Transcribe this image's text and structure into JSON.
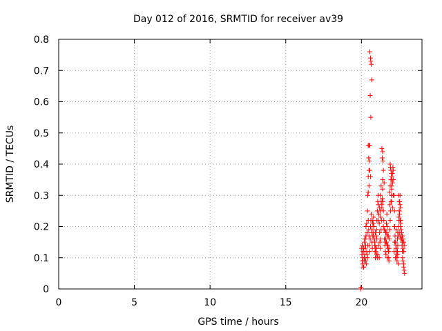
{
  "chart_data": {
    "type": "scatter",
    "title": "Day 012 of 2016, SRMTID for receiver av39",
    "xlabel": "GPS time / hours",
    "ylabel": "SRMTID / TECUs",
    "xlim": [
      0,
      24
    ],
    "ylim": [
      0,
      0.8
    ],
    "xticks": [
      "0",
      "5",
      "10",
      "15",
      "20"
    ],
    "xtick_values": [
      0,
      5,
      10,
      15,
      20
    ],
    "yticks": [
      "0",
      "0.1",
      "0.2",
      "0.3",
      "0.4",
      "0.5",
      "0.6",
      "0.7",
      "0.8"
    ],
    "ytick_values": [
      0,
      0.1,
      0.2,
      0.3,
      0.4,
      0.5,
      0.6,
      0.7,
      0.8
    ],
    "grid": true,
    "marker": "plus",
    "color": "#ff0000",
    "series": [
      {
        "name": "SRMTID",
        "x": [
          19.95,
          19.97,
          20.0,
          20.03,
          20.05,
          20.08,
          20.1,
          20.12,
          20.15,
          20.18,
          20.2,
          20.22,
          20.25,
          20.28,
          20.05,
          20.12,
          20.2,
          20.3,
          20.35,
          20.38,
          20.4,
          20.42,
          20.45,
          20.48,
          20.5,
          20.52,
          20.55,
          20.58,
          20.6,
          20.62,
          20.65,
          20.68,
          20.7,
          20.72,
          20.75,
          20.78,
          20.8,
          20.82,
          20.85,
          20.88,
          20.9,
          20.92,
          20.95,
          20.98,
          21.0,
          21.02,
          21.05,
          21.08,
          21.1,
          21.12,
          21.15,
          21.18,
          21.2,
          21.22,
          21.25,
          21.28,
          21.3,
          21.32,
          21.35,
          21.38,
          21.4,
          21.42,
          21.45,
          21.48,
          21.5,
          21.52,
          21.55,
          21.58,
          21.6,
          21.62,
          21.65,
          21.68,
          21.7,
          21.72,
          21.75,
          21.78,
          21.8,
          21.82,
          21.85,
          21.88,
          21.9,
          21.92,
          21.95,
          21.98,
          22.0,
          22.02,
          22.05,
          22.08,
          22.1,
          22.12,
          22.15,
          22.18,
          22.2,
          22.22,
          22.25,
          22.28,
          22.3,
          22.32,
          22.35,
          22.38,
          22.4,
          22.42,
          22.45,
          22.48,
          22.5,
          22.52,
          22.55,
          22.58,
          22.6,
          22.62,
          22.65,
          22.68,
          22.7,
          22.72,
          22.75,
          22.78,
          22.8,
          22.82,
          22.85,
          20.55,
          20.6,
          20.62,
          20.65,
          20.68,
          20.58,
          20.62,
          20.45,
          20.5,
          20.55,
          20.48,
          20.52,
          20.5,
          20.55,
          20.45,
          20.6,
          20.5,
          20.45,
          21.35,
          21.4,
          21.38,
          21.42,
          21.45,
          21.4,
          21.5,
          21.3,
          21.25,
          21.3,
          21.35,
          21.2,
          21.25,
          21.28,
          21.15,
          21.1,
          21.45,
          21.55,
          21.6,
          21.9,
          21.92,
          21.95,
          21.98,
          22.0,
          21.95,
          22.05,
          21.9,
          22.0,
          21.85,
          22.1,
          22.0,
          21.88,
          22.05,
          22.45,
          22.5,
          22.55,
          22.5,
          22.52,
          22.48,
          22.55,
          22.6,
          22.58,
          22.62,
          22.65,
          22.7,
          22.75,
          22.8,
          22.85,
          22.4,
          22.55,
          22.6,
          22.7,
          22.75,
          22.8,
          20.7,
          20.75,
          20.8,
          20.85,
          20.9,
          20.95,
          21.0,
          21.05,
          20.72,
          20.82,
          20.92,
          21.02,
          21.12,
          20.78,
          20.88,
          20.98,
          21.08,
          21.18,
          20.3,
          20.25,
          20.2,
          20.35,
          20.4,
          20.15,
          20.1,
          20.28,
          20.38,
          20.42,
          20.22,
          20.32,
          20.12,
          21.6,
          21.65,
          21.7,
          21.75,
          21.8,
          21.62,
          21.72,
          21.82,
          21.68,
          21.78,
          22.2,
          22.3,
          22.4,
          22.25,
          22.35,
          22.45,
          22.15,
          22.28,
          22.38,
          22.5,
          22.3,
          22.18
        ],
        "y": [
          0.0,
          0.005,
          0.13,
          0.11,
          0.09,
          0.08,
          0.1,
          0.12,
          0.07,
          0.09,
          0.1,
          0.11,
          0.13,
          0.14,
          0.14,
          0.12,
          0.1,
          0.2,
          0.21,
          0.18,
          0.25,
          0.3,
          0.22,
          0.19,
          0.17,
          0.14,
          0.12,
          0.16,
          0.2,
          0.22,
          0.24,
          0.18,
          0.15,
          0.13,
          0.17,
          0.21,
          0.23,
          0.2,
          0.16,
          0.14,
          0.12,
          0.1,
          0.13,
          0.17,
          0.19,
          0.22,
          0.25,
          0.28,
          0.3,
          0.27,
          0.24,
          0.21,
          0.18,
          0.15,
          0.13,
          0.16,
          0.19,
          0.22,
          0.26,
          0.29,
          0.32,
          0.28,
          0.25,
          0.22,
          0.19,
          0.16,
          0.14,
          0.12,
          0.15,
          0.18,
          0.21,
          0.24,
          0.2,
          0.17,
          0.14,
          0.12,
          0.1,
          0.13,
          0.16,
          0.19,
          0.22,
          0.25,
          0.28,
          0.3,
          0.33,
          0.35,
          0.37,
          0.39,
          0.38,
          0.35,
          0.3,
          0.25,
          0.2,
          0.17,
          0.15,
          0.13,
          0.12,
          0.11,
          0.1,
          0.12,
          0.14,
          0.17,
          0.2,
          0.22,
          0.25,
          0.28,
          0.3,
          0.26,
          0.22,
          0.19,
          0.16,
          0.14,
          0.12,
          0.1,
          0.09,
          0.08,
          0.07,
          0.06,
          0.05,
          0.76,
          0.74,
          0.73,
          0.72,
          0.67,
          0.62,
          0.55,
          0.46,
          0.46,
          0.46,
          0.42,
          0.41,
          0.38,
          0.38,
          0.36,
          0.36,
          0.33,
          0.31,
          0.45,
          0.44,
          0.42,
          0.41,
          0.38,
          0.35,
          0.34,
          0.33,
          0.3,
          0.28,
          0.27,
          0.26,
          0.25,
          0.23,
          0.24,
          0.22,
          0.2,
          0.19,
          0.18,
          0.4,
          0.39,
          0.38,
          0.37,
          0.36,
          0.35,
          0.34,
          0.33,
          0.32,
          0.31,
          0.3,
          0.28,
          0.27,
          0.26,
          0.3,
          0.28,
          0.27,
          0.25,
          0.24,
          0.23,
          0.22,
          0.21,
          0.2,
          0.19,
          0.18,
          0.17,
          0.16,
          0.15,
          0.14,
          0.18,
          0.17,
          0.16,
          0.15,
          0.13,
          0.12,
          0.19,
          0.21,
          0.18,
          0.16,
          0.14,
          0.12,
          0.11,
          0.1,
          0.22,
          0.2,
          0.18,
          0.16,
          0.14,
          0.17,
          0.15,
          0.13,
          0.11,
          0.1,
          0.17,
          0.16,
          0.15,
          0.12,
          0.1,
          0.13,
          0.12,
          0.09,
          0.11,
          0.14,
          0.16,
          0.08,
          0.07,
          0.16,
          0.15,
          0.14,
          0.13,
          0.12,
          0.11,
          0.1,
          0.09,
          0.18,
          0.17,
          0.15,
          0.13,
          0.11,
          0.1,
          0.09,
          0.08,
          0.12,
          0.14,
          0.16,
          0.18,
          0.19,
          0.2
        ]
      }
    ]
  }
}
